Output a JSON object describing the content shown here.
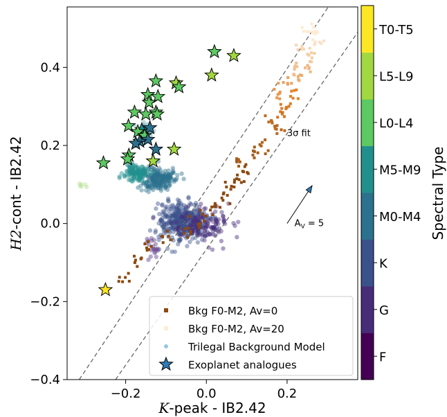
{
  "chart_data": {
    "type": "scatter",
    "xlabel": "K-peak - IB2.42",
    "ylabel": "H2-cont - IB2.42",
    "xlim": [
      -0.345,
      0.375
    ],
    "ylim": [
      -0.4,
      0.555
    ],
    "xticks": [
      -0.2,
      0.0,
      0.2
    ],
    "xtick_labels": [
      "−0.2",
      "0.0",
      "0.2"
    ],
    "yticks": [
      -0.4,
      -0.2,
      0.0,
      0.2,
      0.4
    ],
    "ytick_labels": [
      "−0.4",
      "−0.2",
      "0.0",
      "0.2",
      "0.4"
    ],
    "grid": false,
    "legend_position": "bottom-right",
    "colorbar": {
      "label": "Spectral Type",
      "categories": [
        "F",
        "G",
        "K",
        "M0-M4",
        "M5-M9",
        "L0-L4",
        "L5-L9",
        "T0-T5"
      ],
      "colors": [
        "#440154",
        "#472c7a",
        "#3b518b",
        "#2c718e",
        "#21908d",
        "#5dc962",
        "#a2d83f",
        "#fde725"
      ]
    },
    "legend": [
      {
        "label": "Bkg F0-M2, Av=0",
        "marker": "square",
        "color": "#8c4a10"
      },
      {
        "label": "Bkg F0-M2, Av=20",
        "marker": "square",
        "color": "#fdebd3"
      },
      {
        "label": "Trilegal Background Model",
        "marker": "circle",
        "color": "#7fb7d8"
      },
      {
        "label": "Exoplanet analogues",
        "marker": "star",
        "color": "#2c7bb6"
      }
    ],
    "annotations": [
      {
        "text": "3σ fit",
        "x": 0.2,
        "y": 0.22
      },
      {
        "text": "A",
        "sub": "V",
        "rest": " = 5",
        "x": 0.215,
        "y": 0.0
      }
    ],
    "reddening_vector": {
      "x0": 0.2,
      "y0": 0.0,
      "x1": 0.262,
      "y1": 0.097
    },
    "fit_lines": [
      {
        "name": "upper",
        "x": [
          -0.315,
          0.302
        ],
        "y": [
          -0.4,
          0.555
        ]
      },
      {
        "name": "lower",
        "x": [
          -0.225,
          0.375
        ],
        "y": [
          -0.4,
          0.49
        ]
      }
    ],
    "background_sequence": [
      {
        "x": -0.205,
        "y": -0.14,
        "av": 0
      },
      {
        "x": -0.175,
        "y": -0.095,
        "av": 0
      },
      {
        "x": -0.15,
        "y": -0.06,
        "av": 0
      },
      {
        "x": -0.1,
        "y": -0.035,
        "av": 0
      },
      {
        "x": -0.05,
        "y": -0.02,
        "av": 0
      },
      {
        "x": -0.02,
        "y": 0.0,
        "av": 0
      },
      {
        "x": 0.0,
        "y": 0.03,
        "av": 0
      },
      {
        "x": 0.02,
        "y": 0.05,
        "av": 0
      },
      {
        "x": 0.045,
        "y": 0.07,
        "av": 0
      },
      {
        "x": 0.06,
        "y": 0.09,
        "av": 0
      },
      {
        "x": 0.08,
        "y": 0.11,
        "av": 0
      },
      {
        "x": 0.1,
        "y": 0.14,
        "av": 0
      },
      {
        "x": 0.08,
        "y": 0.16,
        "av": 3
      },
      {
        "x": 0.12,
        "y": 0.18,
        "av": 3
      },
      {
        "x": 0.15,
        "y": 0.2,
        "av": 4
      },
      {
        "x": 0.18,
        "y": 0.24,
        "av": 5
      },
      {
        "x": 0.16,
        "y": 0.26,
        "av": 6
      },
      {
        "x": 0.19,
        "y": 0.28,
        "av": 8
      },
      {
        "x": 0.2,
        "y": 0.3,
        "av": 9
      },
      {
        "x": 0.22,
        "y": 0.33,
        "av": 10
      },
      {
        "x": 0.18,
        "y": 0.33,
        "av": 12
      },
      {
        "x": 0.2,
        "y": 0.36,
        "av": 13
      },
      {
        "x": 0.23,
        "y": 0.37,
        "av": 14
      },
      {
        "x": 0.25,
        "y": 0.39,
        "av": 15
      },
      {
        "x": 0.22,
        "y": 0.4,
        "av": 16
      },
      {
        "x": 0.26,
        "y": 0.43,
        "av": 17
      },
      {
        "x": 0.24,
        "y": 0.45,
        "av": 18
      },
      {
        "x": 0.28,
        "y": 0.46,
        "av": 19
      },
      {
        "x": 0.27,
        "y": 0.48,
        "av": 20
      },
      {
        "x": 0.255,
        "y": 0.5,
        "av": 20
      }
    ],
    "trilegal_clusters": [
      {
        "x": -0.06,
        "y": 0.005,
        "n": 380,
        "sx": 0.03,
        "sy": 0.025,
        "color": "#3b518b"
      },
      {
        "x": -0.01,
        "y": 0.0,
        "n": 140,
        "sx": 0.035,
        "sy": 0.02,
        "color": "#472c7a"
      },
      {
        "x": -0.135,
        "y": -0.06,
        "n": 20,
        "sx": 0.01,
        "sy": 0.015,
        "color": "#5d3c8c"
      },
      {
        "x": -0.12,
        "y": 0.115,
        "n": 220,
        "sx": 0.02,
        "sy": 0.015,
        "color": "#2c718e"
      },
      {
        "x": -0.175,
        "y": 0.13,
        "n": 120,
        "sx": 0.015,
        "sy": 0.012,
        "color": "#21908d"
      },
      {
        "x": -0.15,
        "y": 0.235,
        "n": 40,
        "sx": 0.01,
        "sy": 0.012,
        "color": "#6aa8b4"
      },
      {
        "x": -0.305,
        "y": 0.1,
        "n": 6,
        "sx": 0.008,
        "sy": 0.006,
        "color": "#b5e093"
      }
    ],
    "exoplanet_analogues": [
      {
        "x": 0.02,
        "y": 0.44,
        "class": "L0-L4"
      },
      {
        "x": 0.068,
        "y": 0.43,
        "class": "L5-L9"
      },
      {
        "x": 0.013,
        "y": 0.38,
        "class": "L5-L9"
      },
      {
        "x": -0.125,
        "y": 0.365,
        "class": "L0-L4"
      },
      {
        "x": -0.075,
        "y": 0.36,
        "class": "L5-L9"
      },
      {
        "x": -0.068,
        "y": 0.35,
        "class": "L0-L4"
      },
      {
        "x": -0.145,
        "y": 0.33,
        "class": "L0-L4"
      },
      {
        "x": -0.12,
        "y": 0.325,
        "class": "L0-L4"
      },
      {
        "x": -0.142,
        "y": 0.31,
        "class": "L0-L4"
      },
      {
        "x": -0.125,
        "y": 0.285,
        "class": "L0-L4"
      },
      {
        "x": -0.178,
        "y": 0.285,
        "class": "L0-L4"
      },
      {
        "x": -0.15,
        "y": 0.28,
        "class": "L0-L4"
      },
      {
        "x": -0.122,
        "y": 0.28,
        "class": "L0-L4"
      },
      {
        "x": -0.193,
        "y": 0.25,
        "class": "L0-L4"
      },
      {
        "x": -0.16,
        "y": 0.24,
        "class": "M5-M9"
      },
      {
        "x": -0.14,
        "y": 0.245,
        "class": "M0-M4"
      },
      {
        "x": -0.17,
        "y": 0.235,
        "class": "L0-L4"
      },
      {
        "x": -0.153,
        "y": 0.225,
        "class": "L0-L4"
      },
      {
        "x": -0.145,
        "y": 0.215,
        "class": "M0-M4"
      },
      {
        "x": -0.165,
        "y": 0.21,
        "class": "M0-M4"
      },
      {
        "x": -0.175,
        "y": 0.205,
        "class": "M0-M4"
      },
      {
        "x": -0.125,
        "y": 0.19,
        "class": "M0-M4"
      },
      {
        "x": -0.08,
        "y": 0.19,
        "class": "L5-L9"
      },
      {
        "x": -0.192,
        "y": 0.175,
        "class": "L0-L4"
      },
      {
        "x": -0.195,
        "y": 0.165,
        "class": "L0-L4"
      },
      {
        "x": -0.132,
        "y": 0.16,
        "class": "L5-L9"
      },
      {
        "x": -0.255,
        "y": 0.155,
        "class": "L0-L4"
      },
      {
        "x": -0.25,
        "y": -0.17,
        "class": "T0-T5"
      }
    ]
  }
}
